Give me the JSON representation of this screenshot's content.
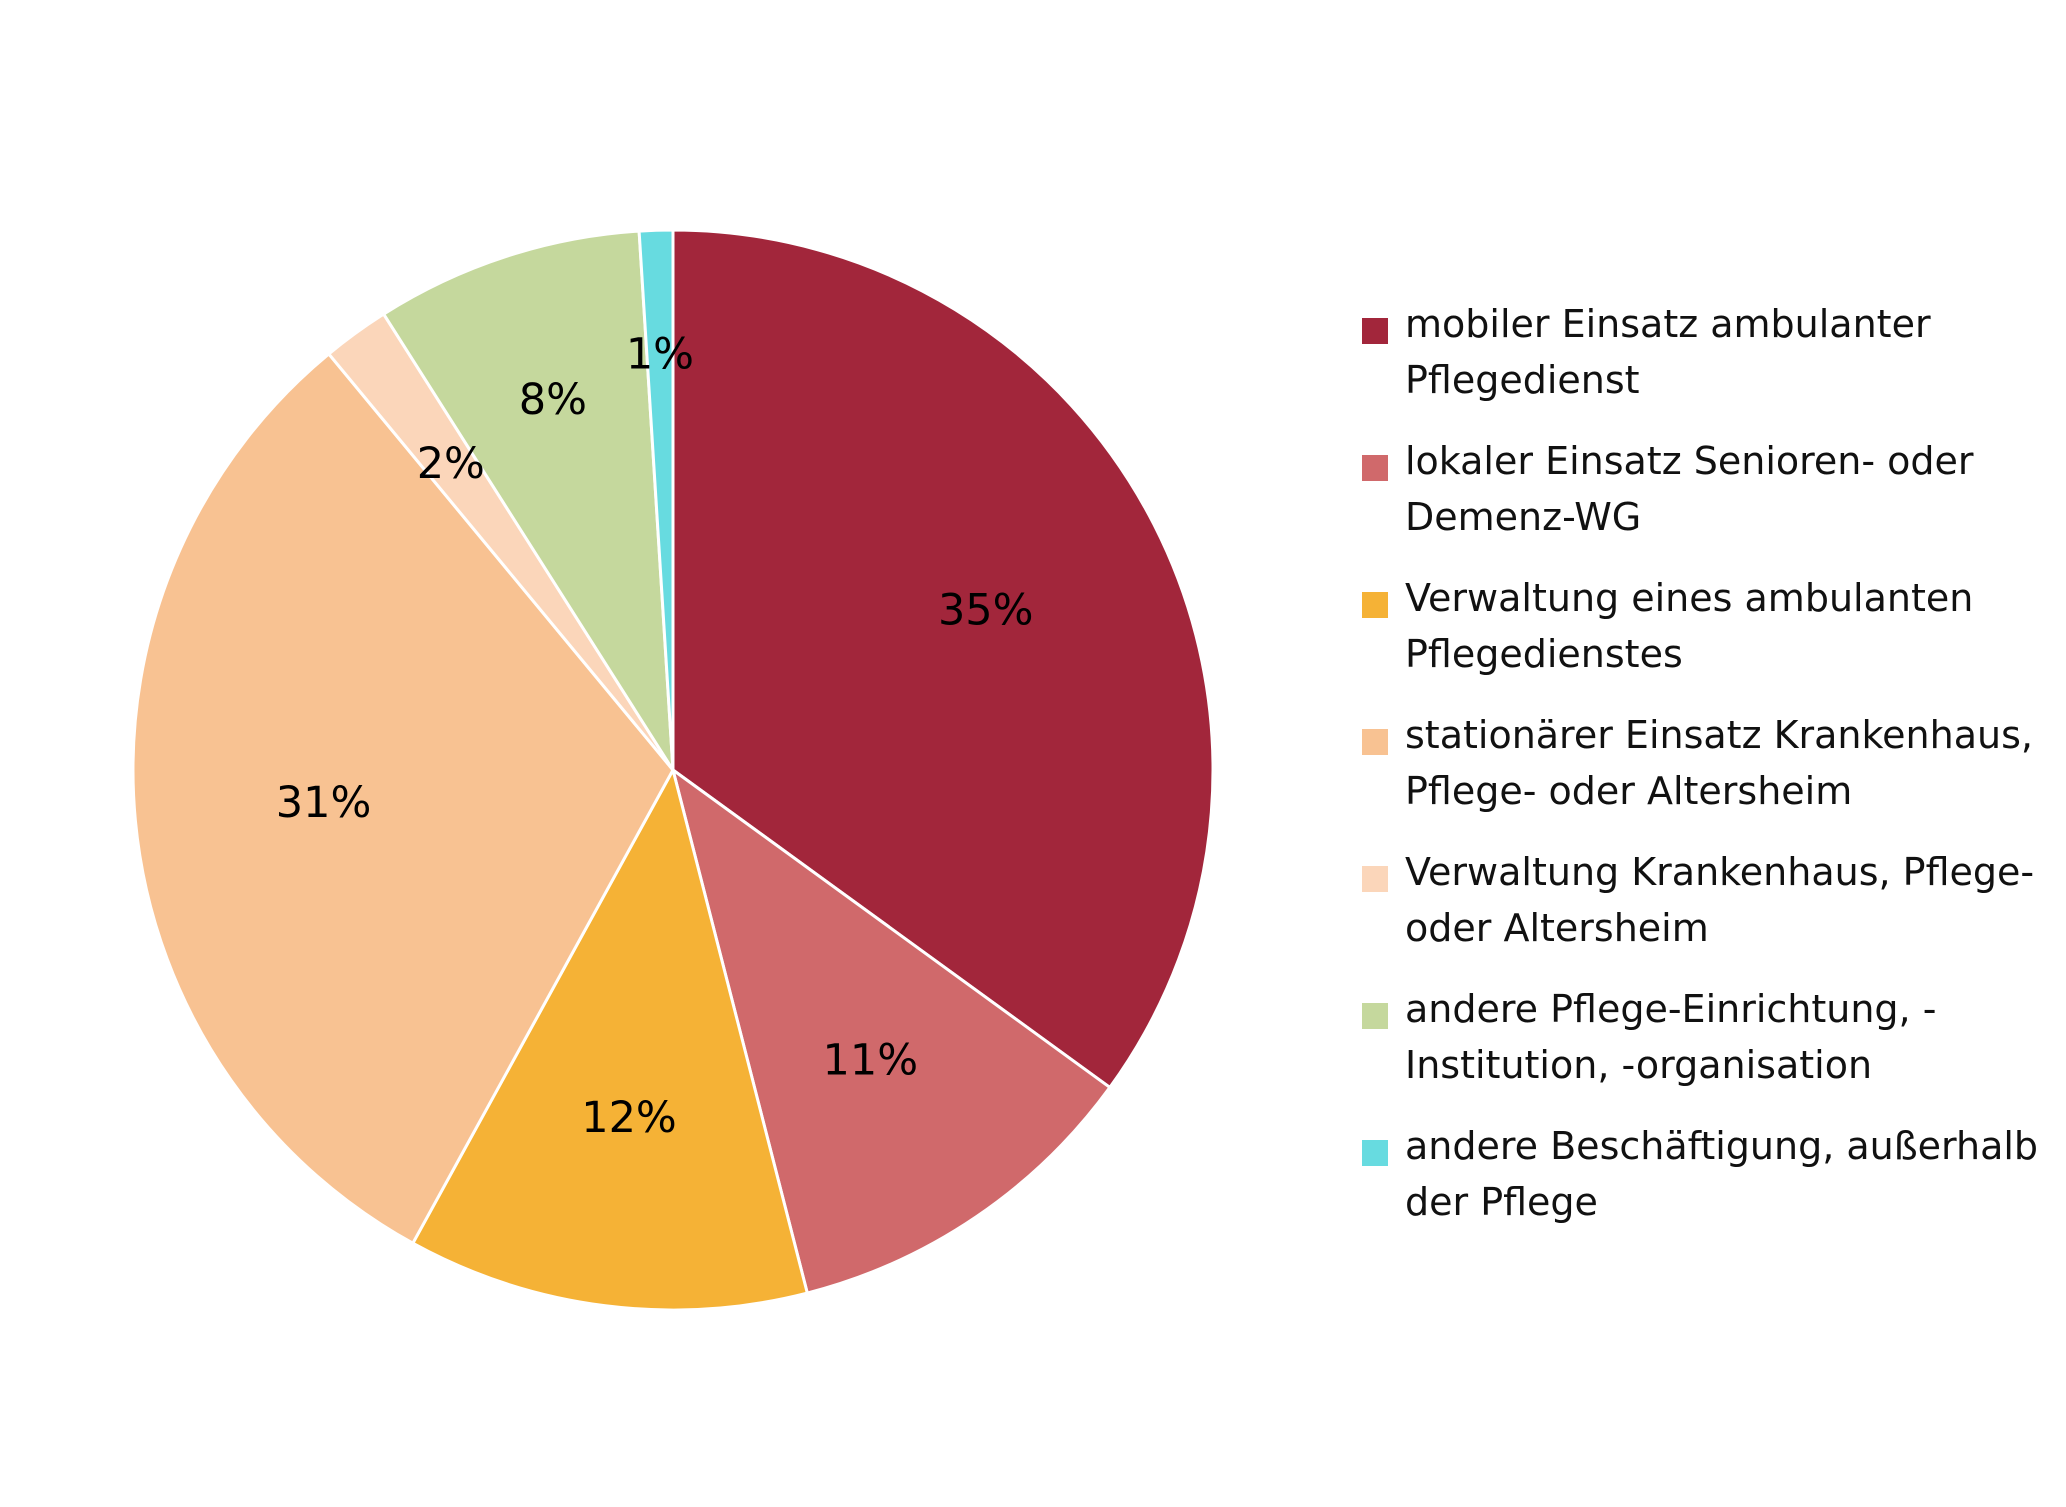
{
  "chart_data": {
    "type": "pie",
    "start_angle_deg": 0,
    "direction": "clockwise",
    "slices": [
      {
        "label": "mobiler Einsatz ambulanter\nPflegedienst",
        "value": 35,
        "value_label": "35%",
        "color": "#A2263B"
      },
      {
        "label": "lokaler Einsatz Senioren- oder\nDemenz-WG",
        "value": 11,
        "value_label": "11%",
        "color": "#D0696B"
      },
      {
        "label": "Verwaltung eines ambulanten\nPflegedienstes",
        "value": 12,
        "value_label": "12%",
        "color": "#F5B236"
      },
      {
        "label": "stationärer Einsatz Krankenhaus,\nPflege- oder Altersheim",
        "value": 31,
        "value_label": "31%",
        "color": "#F8C292"
      },
      {
        "label": "Verwaltung Krankenhaus, Pflege-\noder Altersheim",
        "value": 2,
        "value_label": "2%",
        "color": "#FBD6BA"
      },
      {
        "label": "andere Pflege-Einrichtung, -\nInstitution, -organisation",
        "value": 8,
        "value_label": "8%",
        "color": "#C5D89D"
      },
      {
        "label": "andere Beschäftigung, außerhalb\nder Pflege",
        "value": 1,
        "value_label": "1%",
        "color": "#67DBE0"
      }
    ],
    "legend_position": "right"
  }
}
